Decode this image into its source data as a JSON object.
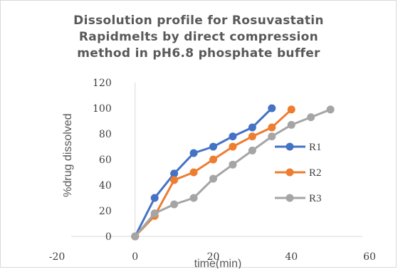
{
  "chart_data": {
    "type": "scatter",
    "title_lines": [
      "Dissolution profile for Rosuvastatin",
      "Rapidmelts by direct compression",
      "method in pH6.8  phosphate buffer"
    ],
    "xlabel": "time(min)",
    "ylabel": "%drug dissolved",
    "xlim": [
      -20,
      60
    ],
    "ylim": [
      0,
      120
    ],
    "xticks": [
      -20,
      0,
      20,
      40,
      60
    ],
    "yticks": [
      0,
      20,
      40,
      60,
      80,
      100,
      120
    ],
    "grid": false,
    "legend_position": "right",
    "series": [
      {
        "name": "R1",
        "color": "#4472c4",
        "x": [
          0,
          5,
          10,
          15,
          20,
          25,
          30,
          35
        ],
        "y": [
          0,
          30,
          49,
          65,
          70,
          78,
          85,
          100
        ]
      },
      {
        "name": "R2",
        "color": "#ed7d31",
        "x": [
          0,
          5,
          10,
          15,
          20,
          25,
          30,
          35,
          40
        ],
        "y": [
          0,
          16,
          44,
          50,
          60,
          70,
          78,
          85,
          99
        ]
      },
      {
        "name": "R3",
        "color": "#a5a5a5",
        "x": [
          0,
          5,
          10,
          15,
          20,
          25,
          30,
          35,
          40,
          45,
          50
        ],
        "y": [
          0,
          18,
          25,
          30,
          45,
          56,
          67,
          78,
          87,
          93,
          99
        ]
      }
    ]
  }
}
